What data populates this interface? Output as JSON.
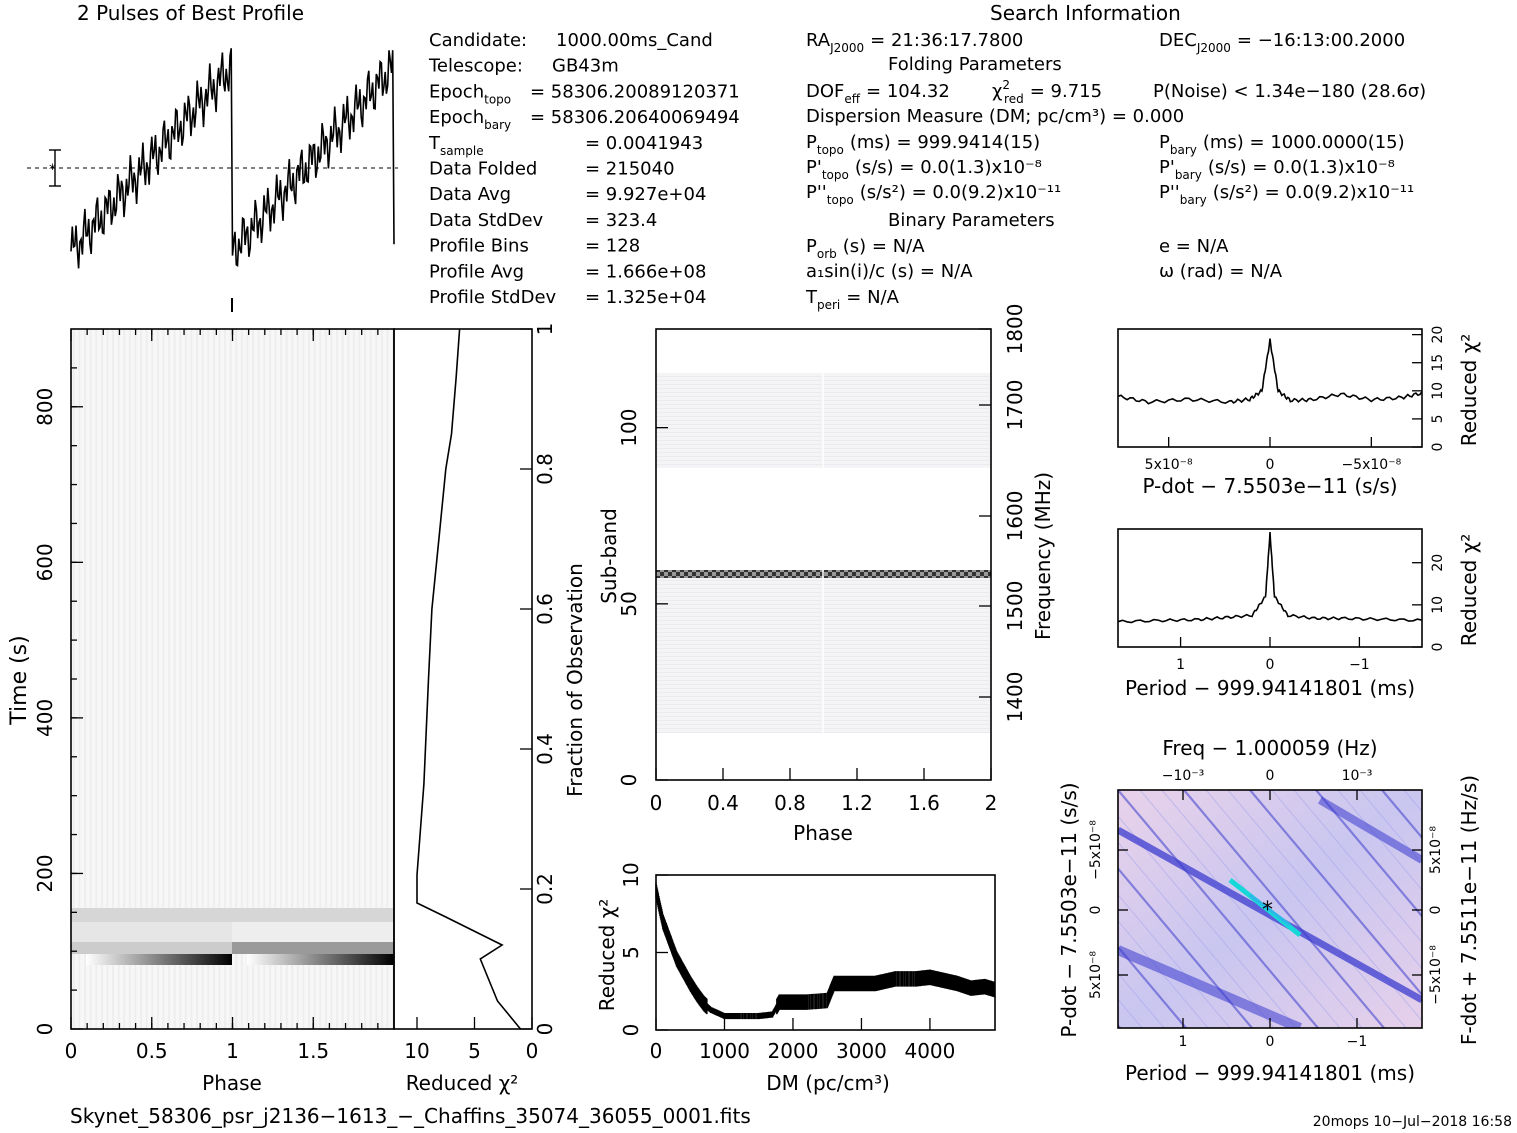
{
  "header": {
    "profile_title": "2 Pulses of Best Profile",
    "search_title": "Search Information",
    "folding_title": "Folding Parameters",
    "binary_title": "Binary Parameters"
  },
  "info_col1": [
    {
      "label": "Candidate:",
      "value": "1000.00ms_Cand"
    },
    {
      "label": "Telescope:",
      "value": "GB43m"
    },
    {
      "label": "Epoch",
      "sub": "topo",
      "value": "= 58306.20089120371"
    },
    {
      "label": "Epoch",
      "sub": "bary",
      "value": "= 58306.20640069494"
    },
    {
      "label": "T",
      "sub": "sample",
      "value": "=   0.0041943"
    },
    {
      "label": "Data Folded",
      "value": "=   215040"
    },
    {
      "label": "Data Avg",
      "value": "=   9.927e+04"
    },
    {
      "label": "Data StdDev",
      "value": "=   323.4"
    },
    {
      "label": "Profile Bins",
      "value": "=   128"
    },
    {
      "label": "Profile Avg",
      "value": "=   1.666e+08"
    },
    {
      "label": "Profile StdDev",
      "value": "=   1.325e+04"
    }
  ],
  "info_col2": {
    "ra": "RA",
    "ra_sub": "J2000",
    "ra_value": "= 21:36:17.7800",
    "dec": "DEC",
    "dec_sub": "J2000",
    "dec_value": "= −16:13:00.2000",
    "dof": "DOF",
    "dof_sub": "eff",
    "dof_value": "= 104.32",
    "chi2": "χ",
    "chi2_sub": "red",
    "chi2_value": "= 9.715",
    "pnoise": "P(Noise) < 1.34e−180   (28.6σ)",
    "dm": "Dispersion Measure (DM; pc/cm³) = 0.000",
    "ptopo": "P",
    "ptopo_sub": "topo",
    "ptopo_value": "(ms)  =   999.9414(15)",
    "pbary": "P",
    "pbary_sub": "bary",
    "pbary_value": "(ms)  =   1000.0000(15)",
    "pdtopo": "P'",
    "pdtopo_sub": "topo",
    "pdtopo_value": "(s/s) = 0.0(1.3)x10⁻⁸",
    "pdbary": "P'",
    "pdbary_sub": "bary",
    "pdbary_value": "(s/s) = 0.0(1.3)x10⁻⁸",
    "pddtopo": "P''",
    "pddtopo_sub": "topo",
    "pddtopo_value": "(s/s²) = 0.0(9.2)x10⁻¹¹",
    "pddbary": "P''",
    "pddbary_sub": "bary",
    "pddbary_value": "(s/s²) = 0.0(9.2)x10⁻¹¹",
    "porb": "P",
    "porb_sub": "orb",
    "porb_value": "(s) = N/A",
    "e_value": "e = N/A",
    "a1": "a₁sin(i)/c (s) = N/A",
    "omega": "ω (rad) = N/A",
    "tperi": "T",
    "tperi_sub": "peri",
    "tperi_value": "= N/A"
  },
  "footer": {
    "filename": "Skynet_58306_psr_j2136−1613_−_Chaffins_35074_36055_0001.fits",
    "stamp": "20mops  10−Jul−2018 16:58"
  },
  "chart_data": [
    {
      "type": "line",
      "name": "profile",
      "title": "2 Pulses of Best Profile",
      "x": [
        0,
        0.1,
        0.2,
        0.3,
        0.4,
        0.5,
        0.6,
        0.7,
        0.8,
        0.9,
        1.0,
        1.1,
        1.2,
        1.3,
        1.4,
        1.5,
        1.6,
        1.7,
        1.8,
        1.9,
        2.0
      ],
      "values": [
        0.1,
        0.28,
        0.38,
        0.42,
        0.5,
        0.55,
        0.62,
        0.68,
        0.76,
        0.86,
        0.1,
        0.28,
        0.38,
        0.42,
        0.5,
        0.55,
        0.62,
        0.68,
        0.76,
        0.86,
        0.95
      ],
      "error_bar": true
    },
    {
      "type": "heatmap",
      "name": "time-phase",
      "xlabel": "Phase",
      "ylabel": "Time (s)",
      "xlim": [
        0,
        2
      ],
      "ylim": [
        0,
        900
      ],
      "xticks": [
        "0",
        "0.5",
        "1",
        "1.5"
      ],
      "yticks": [
        "0",
        "200",
        "400",
        "600",
        "800"
      ],
      "bands": [
        {
          "t0": 85,
          "t1": 100,
          "level": "dark gradient"
        },
        {
          "t0": 100,
          "t1": 115,
          "level": "medium"
        },
        {
          "t0": 140,
          "t1": 155,
          "level": "light"
        }
      ]
    },
    {
      "type": "line",
      "name": "reduced-chi2-vs-fraction",
      "xlabel": "Reduced χ²",
      "ylabel": "Fraction of Observation",
      "xlim": [
        12,
        0
      ],
      "ylim": [
        0,
        1
      ],
      "xticks": [
        "10",
        "5",
        "0"
      ],
      "yticks": [
        "0",
        "0.2",
        "0.4",
        "0.6",
        "0.8",
        "1"
      ],
      "x": [
        1,
        3,
        4.5,
        2.6,
        7.5,
        10,
        10,
        9.4,
        9,
        8.7,
        8.1,
        7.5,
        7,
        6.6,
        6.3
      ],
      "y": [
        0,
        0.04,
        0.1,
        0.12,
        0.16,
        0.18,
        0.22,
        0.35,
        0.5,
        0.6,
        0.7,
        0.8,
        0.85,
        0.93,
        1.0
      ]
    },
    {
      "type": "heatmap",
      "name": "subband-phase",
      "xlabel": "Phase",
      "ylabel": "Sub-band",
      "y2label": "Frequency (MHz)",
      "xlim": [
        0,
        2
      ],
      "ylim": [
        0,
        128
      ],
      "xticks": [
        "0",
        "0.4",
        "0.8",
        "1.2",
        "1.6",
        "2"
      ],
      "yticks": [
        "0",
        "50",
        "100"
      ],
      "y2ticks": [
        "1400",
        "1500",
        "1600",
        "1700",
        "1800"
      ],
      "bands": [
        {
          "s0": 13,
          "s1": 57,
          "level": "faint"
        },
        {
          "s0": 57,
          "s1": 59,
          "level": "dark stripe"
        },
        {
          "s0": 89,
          "s1": 115,
          "level": "faint"
        }
      ]
    },
    {
      "type": "line",
      "name": "chi2-vs-dm",
      "xlabel": "DM (pc/cm³)",
      "ylabel": "Reduced χ²",
      "xlim": [
        0,
        4950
      ],
      "ylim": [
        0,
        10
      ],
      "xticks": [
        "0",
        "1000",
        "2000",
        "3000",
        "4000"
      ],
      "yticks": [
        "0",
        "5",
        "10"
      ],
      "x": [
        0,
        100,
        200,
        300,
        400,
        500,
        600,
        700,
        800,
        1000,
        1200,
        1500,
        1700,
        1800,
        2000,
        2200,
        2500,
        2600,
        2800,
        3000,
        3200,
        3300,
        3500,
        3800,
        4000,
        4200,
        4400,
        4600,
        4800,
        4950
      ],
      "values": [
        9.0,
        7.0,
        5.8,
        4.6,
        3.8,
        3.0,
        2.3,
        1.7,
        1.3,
        0.9,
        0.9,
        0.9,
        1.0,
        1.8,
        1.8,
        1.8,
        1.9,
        3.0,
        3.0,
        3.0,
        3.0,
        3.1,
        3.3,
        3.3,
        3.4,
        3.2,
        3.0,
        2.7,
        2.8,
        2.6
      ]
    },
    {
      "type": "line",
      "name": "chi2-vs-pdot",
      "xlabel": "P-dot − 7.5503e−11 (s/s)",
      "ylabel": "Reduced χ²",
      "xticks": [
        "5x10⁻⁸",
        "0",
        "−5x10⁻⁸"
      ],
      "yticks": [
        "0",
        "5",
        "10",
        "15",
        "20"
      ],
      "xlim": [
        7.5e-08,
        -7.5e-08
      ],
      "ylim": [
        0,
        21
      ],
      "x": [
        7.5e-08,
        6e-08,
        4e-08,
        2e-08,
        1e-08,
        4e-09,
        0,
        -4e-09,
        -1e-08,
        -2e-08,
        -3.5e-08,
        -5e-08,
        -6.5e-08,
        -7.5e-08
      ],
      "values": [
        9,
        8,
        8.5,
        8,
        8.5,
        10,
        19,
        10,
        8.3,
        8.4,
        9.4,
        8.4,
        8.8,
        9.6
      ]
    },
    {
      "type": "line",
      "name": "chi2-vs-period",
      "xlabel": "Period − 999.94141801 (ms)",
      "ylabel": "Reduced χ²",
      "xticks": [
        "1",
        "0",
        "−1"
      ],
      "yticks": [
        "0",
        "10",
        "20"
      ],
      "xlim": [
        1.7,
        -1.7
      ],
      "ylim": [
        0,
        28
      ],
      "x": [
        1.7,
        1.2,
        0.8,
        0.5,
        0.2,
        0.05,
        0,
        -0.05,
        -0.2,
        -0.5,
        -0.8,
        -1.2,
        -1.7
      ],
      "values": [
        6,
        6.3,
        6.5,
        7,
        7.5,
        12,
        27,
        12,
        7.5,
        6.8,
        6.8,
        6.6,
        6.3
      ]
    },
    {
      "type": "heatmap",
      "name": "pdot-period",
      "title": "Freq − 1.000059 (Hz)",
      "xlabel": "Period − 999.94141801 (ms)",
      "ylabel": "P-dot − 7.5503e−11 (s/s)",
      "y2label": "F-dot + 7.5511e−11 (Hz/s)",
      "xticks": [
        "1",
        "0",
        "−1"
      ],
      "x2ticks": [
        "−10⁻³",
        "0",
        "10⁻³"
      ],
      "yticks": [
        "−5x10⁻⁸",
        "0",
        "5x10⁻⁸"
      ],
      "y2ticks": [
        "5x10⁻⁸",
        "0",
        "−5x10⁻⁸"
      ],
      "colors": [
        "#ffe4ec",
        "#c6c6f2",
        "#3c3cd0",
        "#16d8d8"
      ]
    }
  ]
}
